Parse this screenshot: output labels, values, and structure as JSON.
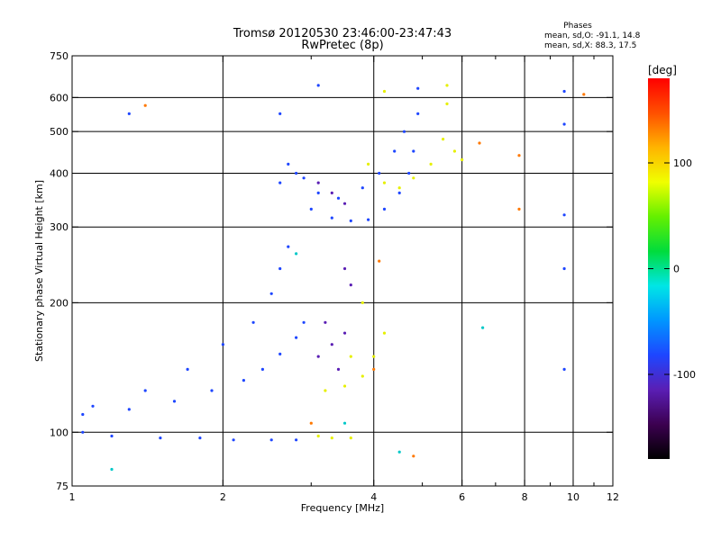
{
  "chart_data": {
    "type": "scatter",
    "title": "Tromsø 20120530 23:46:00-23:47:43",
    "subtitle": "RwPretec (8p)",
    "xlabel": "Frequency [MHz]",
    "ylabel": "Stationary phase Virtual Height [km]",
    "x_scale": "log",
    "y_scale": "log",
    "xlim": [
      1,
      12
    ],
    "ylim": [
      75,
      750
    ],
    "x_ticks": [
      1,
      2,
      4,
      6,
      8,
      10,
      12
    ],
    "x_tick_labels": [
      "1",
      "2",
      "4",
      "6",
      "8",
      "10",
      "12"
    ],
    "x_minor_ticks": [
      3,
      5,
      7,
      9,
      11
    ],
    "x_gridlines": [
      2,
      4,
      6,
      8,
      10
    ],
    "y_ticks": [
      75,
      100,
      200,
      300,
      400,
      500,
      600,
      750
    ],
    "y_tick_labels": [
      "75",
      "100",
      "200",
      "300",
      "400",
      "500",
      "600",
      "750"
    ],
    "y_gridlines": [
      100,
      200,
      300,
      400,
      500,
      600
    ],
    "grid": true,
    "stats": {
      "heading": "Phases",
      "line1": "mean, sd,O: -91.1, 14.8",
      "line2": "mean, sd,X:  88.3, 17.5"
    },
    "colorbar": {
      "label": "[deg]",
      "range": [
        -180,
        180
      ],
      "tick_values": [
        100,
        0,
        -100
      ],
      "tick_labels": [
        "100",
        "0",
        "-100"
      ],
      "colors": [
        "#000000",
        "#3c0050",
        "#5a1eb4",
        "#1e46ff",
        "#0096ff",
        "#00e6e6",
        "#00dc3c",
        "#64f000",
        "#f0ff00",
        "#ffb400",
        "#ff5000",
        "#ff0000"
      ]
    },
    "series": [
      {
        "name": "",
        "color_hint": "blue/O-mode",
        "points": [
          [
            1.05,
            100
          ],
          [
            1.2,
            98
          ],
          [
            1.5,
            97
          ],
          [
            1.8,
            97
          ],
          [
            2.1,
            96
          ],
          [
            2.5,
            96
          ],
          [
            2.8,
            96
          ],
          [
            1.05,
            110
          ],
          [
            1.3,
            113
          ],
          [
            1.6,
            118
          ],
          [
            1.9,
            125
          ],
          [
            2.2,
            132
          ],
          [
            2.4,
            140
          ],
          [
            2.6,
            152
          ],
          [
            2.8,
            166
          ],
          [
            2.9,
            180
          ],
          [
            1.1,
            115
          ],
          [
            1.4,
            125
          ],
          [
            1.7,
            140
          ],
          [
            2.0,
            160
          ],
          [
            2.3,
            180
          ],
          [
            2.5,
            210
          ],
          [
            2.6,
            240
          ],
          [
            2.7,
            270
          ],
          [
            2.6,
            380
          ],
          [
            2.7,
            420
          ],
          [
            2.8,
            400
          ],
          [
            2.9,
            390
          ],
          [
            3.0,
            330
          ],
          [
            3.3,
            315
          ],
          [
            3.6,
            310
          ],
          [
            3.9,
            312
          ],
          [
            4.2,
            330
          ],
          [
            4.5,
            360
          ],
          [
            4.7,
            400
          ],
          [
            4.8,
            450
          ],
          [
            4.9,
            550
          ],
          [
            3.1,
            360
          ],
          [
            3.4,
            350
          ],
          [
            3.8,
            370
          ],
          [
            4.1,
            400
          ],
          [
            4.4,
            450
          ],
          [
            4.6,
            500
          ],
          [
            9.6,
            620
          ],
          [
            9.6,
            520
          ],
          [
            9.6,
            320
          ],
          [
            9.6,
            240
          ],
          [
            9.6,
            140
          ],
          [
            1.3,
            550
          ],
          [
            2.6,
            550
          ],
          [
            3.1,
            640
          ],
          [
            4.9,
            630
          ]
        ]
      },
      {
        "name": "",
        "color_hint": "purple",
        "points": [
          [
            3.1,
            380
          ],
          [
            3.3,
            360
          ],
          [
            3.5,
            340
          ],
          [
            3.2,
            180
          ],
          [
            3.3,
            160
          ],
          [
            3.4,
            140
          ],
          [
            3.5,
            240
          ],
          [
            3.6,
            220
          ],
          [
            3.1,
            150
          ],
          [
            3.5,
            170
          ]
        ]
      },
      {
        "name": "",
        "color_hint": "yellow/X-mode",
        "points": [
          [
            3.2,
            125
          ],
          [
            3.5,
            128
          ],
          [
            3.8,
            135
          ],
          [
            4.0,
            150
          ],
          [
            4.2,
            170
          ],
          [
            3.6,
            150
          ],
          [
            3.8,
            200
          ],
          [
            3.9,
            420
          ],
          [
            4.2,
            380
          ],
          [
            4.5,
            370
          ],
          [
            4.8,
            390
          ],
          [
            5.2,
            420
          ],
          [
            5.5,
            480
          ],
          [
            5.6,
            580
          ],
          [
            5.6,
            640
          ],
          [
            5.8,
            450
          ],
          [
            6.0,
            430
          ],
          [
            3.1,
            98
          ],
          [
            3.3,
            97
          ],
          [
            3.6,
            97
          ],
          [
            4.2,
            620
          ]
        ]
      },
      {
        "name": "",
        "color_hint": "orange/red",
        "points": [
          [
            1.4,
            575
          ],
          [
            6.5,
            470
          ],
          [
            7.8,
            440
          ],
          [
            7.8,
            330
          ],
          [
            10.5,
            610
          ],
          [
            4.1,
            250
          ],
          [
            4.8,
            88
          ],
          [
            4.0,
            140
          ],
          [
            3.0,
            105
          ]
        ]
      },
      {
        "name": "",
        "color_hint": "cyan/green",
        "points": [
          [
            1.2,
            82
          ],
          [
            2.8,
            260
          ],
          [
            6.6,
            175
          ],
          [
            3.5,
            105
          ],
          [
            4.5,
            90
          ]
        ]
      }
    ]
  }
}
